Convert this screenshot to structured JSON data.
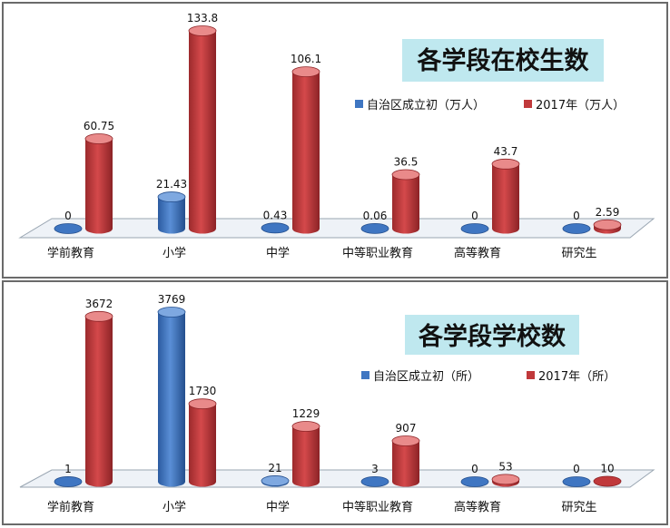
{
  "colors": {
    "series_blue": "#3f76c2",
    "series_blue_top": "#7ea8e0",
    "series_red": "#c0393b",
    "series_red_top": "#e98a8a",
    "title_bg": "#bfe8ef"
  },
  "chart_data": [
    {
      "type": "bar",
      "title": "各学段在校生数",
      "categories": [
        "学前教育",
        "小学",
        "中学",
        "中等职业教育",
        "高等教育",
        "研究生"
      ],
      "series": [
        {
          "name": "自治区成立初（万人）",
          "values": [
            0,
            21.43,
            0.43,
            0.06,
            0,
            0
          ],
          "labels": [
            "0",
            "21.43",
            "0.43",
            "0.06",
            "0",
            "0"
          ]
        },
        {
          "name": "2017年（万人）",
          "values": [
            60.75,
            133.8,
            106.1,
            36.5,
            43.7,
            2.59
          ],
          "labels": [
            "60.75",
            "133.8",
            "106.1",
            "36.5",
            "43.7",
            "2.59"
          ]
        }
      ],
      "ylim": [
        0,
        133.8
      ],
      "legend": "top-right",
      "grid": false
    },
    {
      "type": "bar",
      "title": "各学段学校数",
      "categories": [
        "学前教育",
        "小学",
        "中学",
        "中等职业教育",
        "高等教育",
        "研究生"
      ],
      "series": [
        {
          "name": "自治区成立初（所）",
          "values": [
            1,
            3769,
            21,
            3,
            0,
            0
          ],
          "labels": [
            "1",
            "3769",
            "21",
            "3",
            "0",
            "0"
          ]
        },
        {
          "name": "2017年（所）",
          "values": [
            3672,
            1730,
            1229,
            907,
            53,
            10
          ],
          "labels": [
            "3672",
            "1730",
            "1229",
            "907",
            "53",
            "10"
          ]
        }
      ],
      "ylim": [
        0,
        3769
      ],
      "legend": "top-right",
      "grid": false
    }
  ]
}
